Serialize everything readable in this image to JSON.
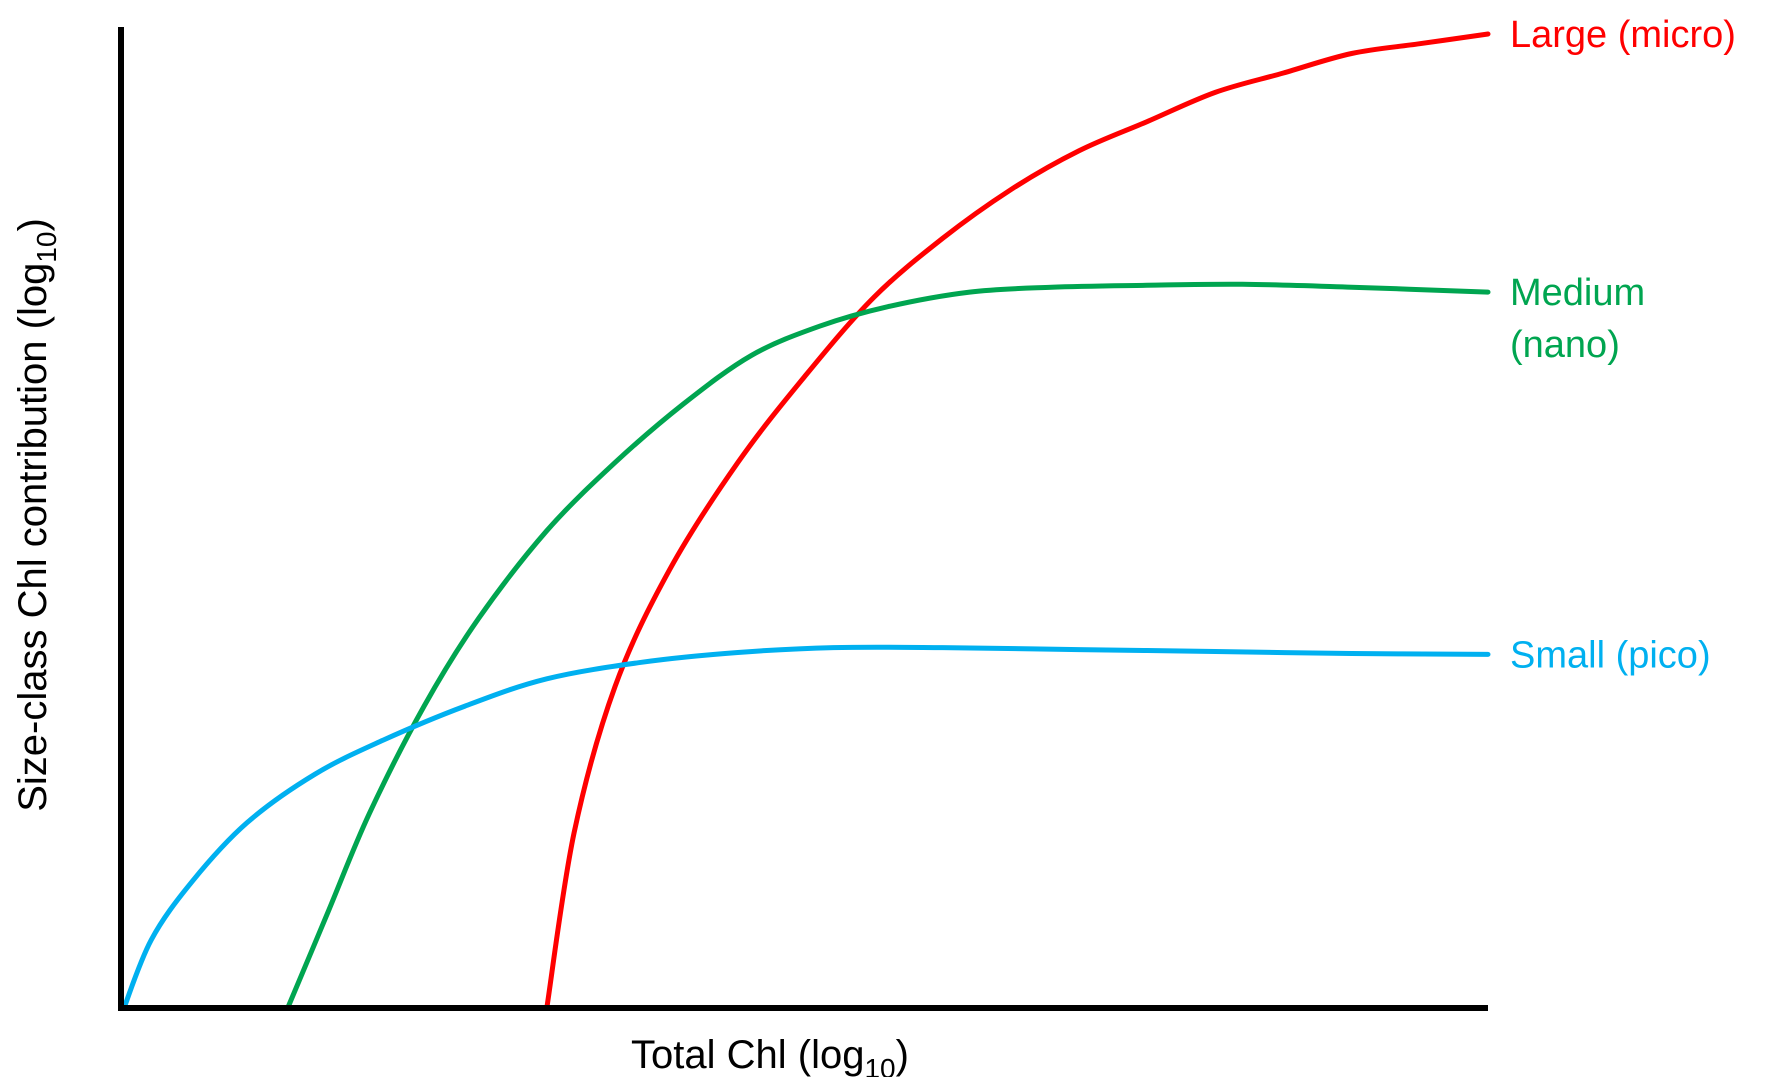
{
  "chart_data": {
    "type": "line",
    "title": "",
    "xlabel": {
      "main": "Total Chl (log",
      "sub": "10",
      "close": ")"
    },
    "ylabel": {
      "main": "Size-class Chl contribution (log",
      "sub": "10",
      "close": ")"
    },
    "xlim": [
      0,
      100
    ],
    "ylim": [
      0,
      100
    ],
    "grid": false,
    "legend": "inline labels at right end of each curve",
    "colors": {
      "axis": "#000000"
    },
    "series": [
      {
        "name": "Large (micro)",
        "label_lines": [
          "Large (micro)"
        ],
        "color": "#ff0000",
        "x": [
          31,
          33,
          36,
          40,
          45,
          50,
          55,
          60,
          65,
          70,
          75,
          80,
          85,
          90,
          95,
          100
        ],
        "y": [
          0,
          18,
          33,
          45,
          56,
          65,
          73,
          79,
          84,
          88,
          91,
          94,
          96,
          98,
          99,
          100
        ]
      },
      {
        "name": "Medium (nano)",
        "label_lines": [
          "Medium",
          "(nano)"
        ],
        "color": "#00a550",
        "x": [
          12,
          15,
          18,
          22,
          26,
          31,
          36,
          41,
          46,
          51,
          56,
          62,
          68,
          75,
          82,
          90,
          100
        ],
        "y": [
          0,
          10,
          20,
          31,
          40,
          49,
          56,
          62,
          67,
          70,
          72,
          73.5,
          74,
          74.2,
          74.3,
          74,
          73.5
        ]
      },
      {
        "name": "Small (pico)",
        "label_lines": [
          "Small (pico)"
        ],
        "color": "#00b0f0",
        "x": [
          0,
          2,
          5,
          9,
          14,
          19,
          25,
          31,
          38,
          45,
          52,
          60,
          70,
          80,
          90,
          100
        ],
        "y": [
          0,
          7,
          13,
          19,
          24,
          27.5,
          31,
          33.8,
          35.5,
          36.5,
          37,
          37,
          36.8,
          36.6,
          36.4,
          36.3
        ]
      }
    ]
  }
}
